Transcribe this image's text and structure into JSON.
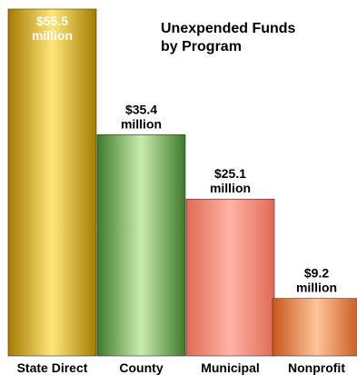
{
  "chart_data": {
    "type": "bar",
    "title": [
      "Unexpended Funds",
      "by Program"
    ],
    "categories": [
      "State Direct",
      "County",
      "Municipal",
      "Nonprofit"
    ],
    "values": [
      55.5,
      35.4,
      25.1,
      9.2
    ],
    "value_labels": [
      [
        "$55.5",
        "million"
      ],
      [
        "$35.4",
        "million"
      ],
      [
        "$25.1",
        "million"
      ],
      [
        "$9.2",
        "million"
      ]
    ],
    "unit": "$ million",
    "ylim": [
      0,
      55.5
    ],
    "grid": false,
    "legend": "none",
    "colors": [
      {
        "edge": "#a57b00",
        "light": "#ffe67a",
        "label_color": "#ffffff"
      },
      {
        "edge": "#3e7a2a",
        "light": "#c9ecae",
        "label_color": "#000000"
      },
      {
        "edge": "#e06a55",
        "light": "#ffb3a5",
        "label_color": "#000000"
      },
      {
        "edge": "#c8561a",
        "light": "#ffc49a",
        "label_color": "#000000"
      }
    ]
  }
}
